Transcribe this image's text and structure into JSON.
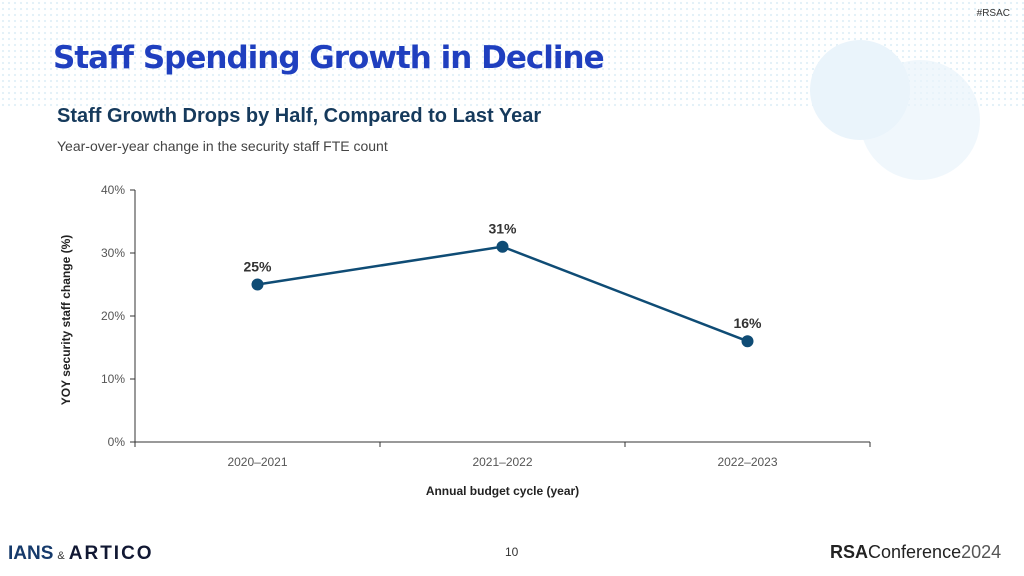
{
  "header": {
    "tag": "#RSAC",
    "title": "Staff Spending Growth in Decline"
  },
  "chart_data": {
    "type": "line",
    "title": "Staff Growth Drops by Half, Compared to Last Year",
    "subtitle": "Year-over-year change in the security staff FTE count",
    "xlabel": "Annual budget cycle (year)",
    "ylabel": "YOY security staff change (%)",
    "categories": [
      "2020–2021",
      "2021–2022",
      "2022–2023"
    ],
    "values": [
      25,
      31,
      16
    ],
    "data_labels": [
      "25%",
      "31%",
      "16%"
    ],
    "ylim": [
      0,
      40
    ],
    "yticks": [
      0,
      10,
      20,
      30,
      40
    ],
    "ytick_labels": [
      "0%",
      "10%",
      "20%",
      "30%",
      "40%"
    ],
    "grid": false,
    "color": "#0f4c75"
  },
  "footer": {
    "page": "10",
    "logo_ians": "IANS",
    "amp": "&",
    "logo_artico": "ARTICO",
    "logo_rsa_bold": "RSA",
    "logo_rsa_rest": "Conference",
    "logo_rsa_year": "2024"
  }
}
